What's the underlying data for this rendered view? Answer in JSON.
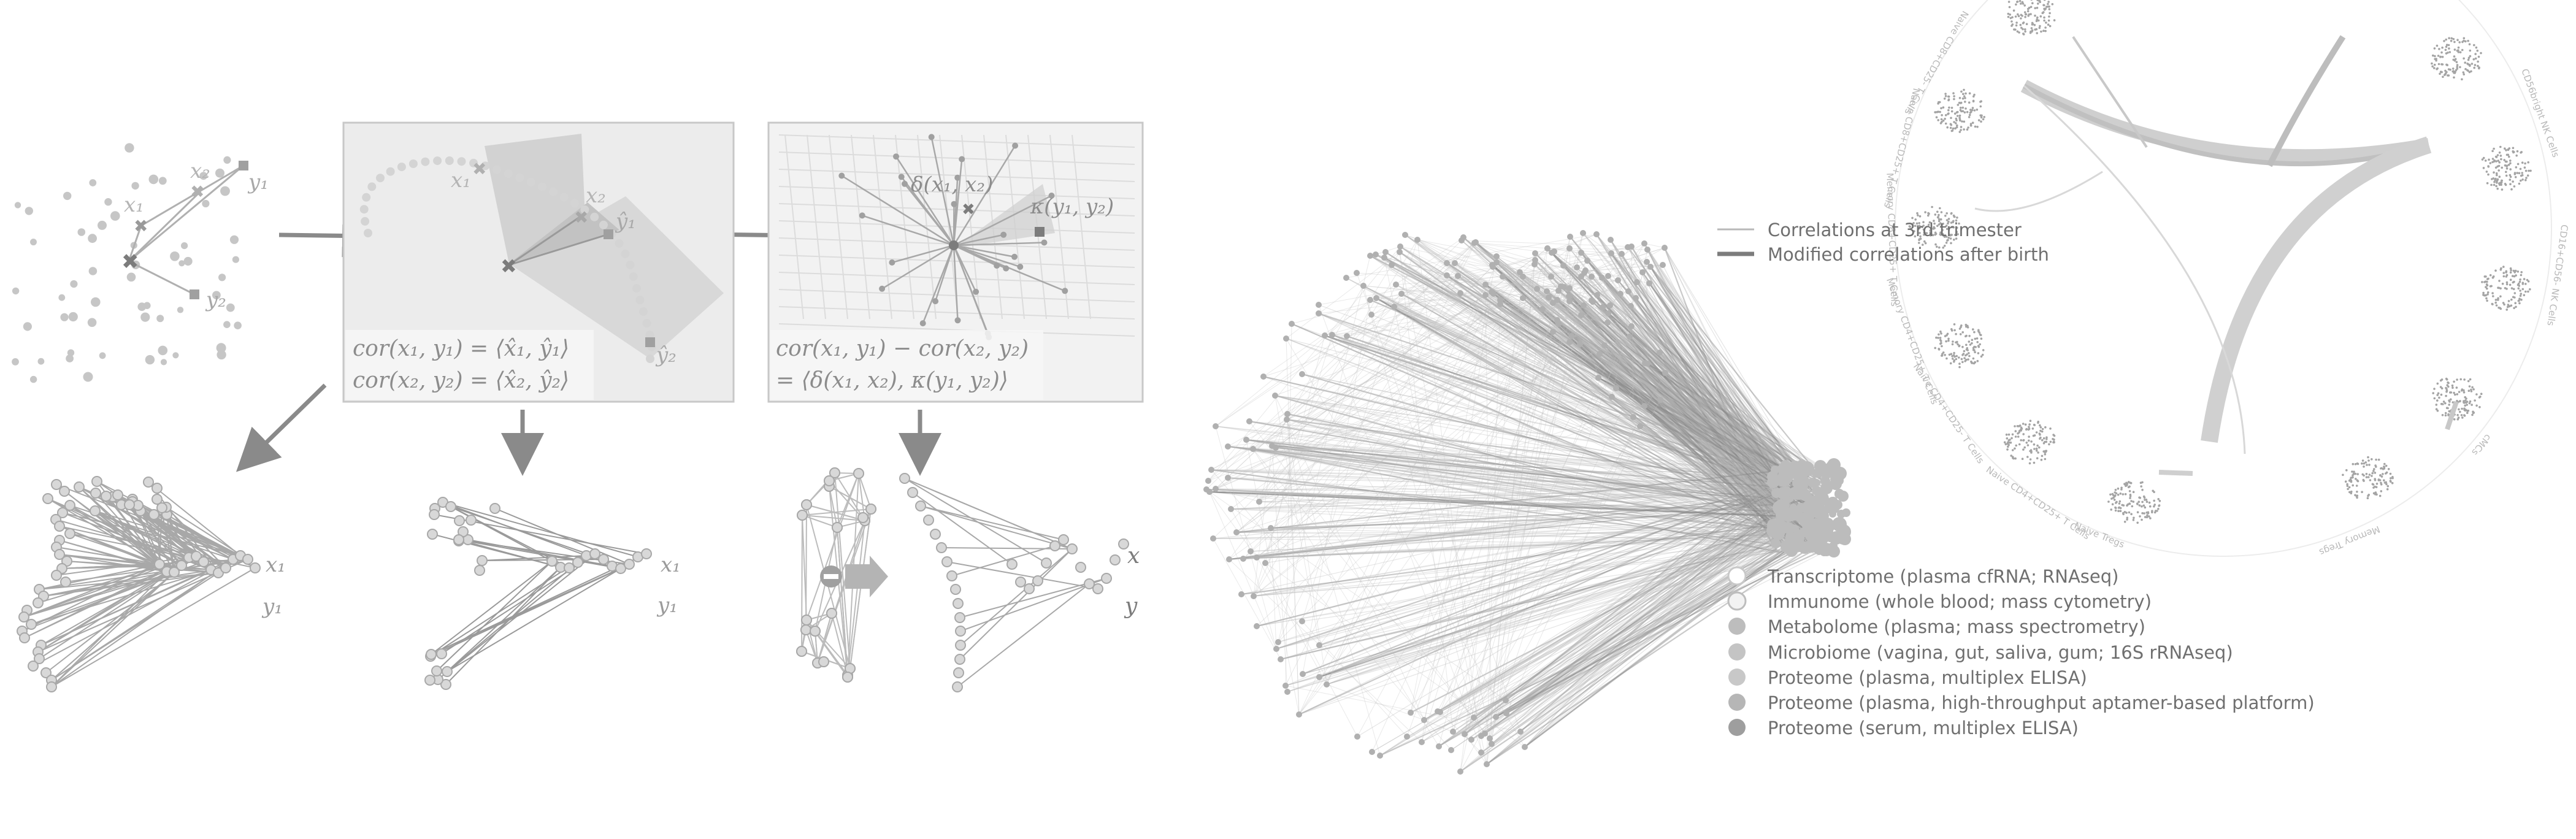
{
  "panel_a": {
    "x1": "x₁",
    "x2": "x₂",
    "y1": "y₁",
    "y2": "y₂"
  },
  "panel_b": {
    "x1": "x₁",
    "x2": "x₂",
    "y1hat": "ŷ₁",
    "y2hat": "ŷ₂",
    "formula1": "cor(x₁, y₁) = ⟨x̂₁, ŷ₁⟩",
    "formula2": "cor(x₂, y₂) = ⟨x̂₂, ŷ₂⟩"
  },
  "panel_c": {
    "delta": "δ(x₁, x₂)",
    "kappa": "κ(y₁, y₂)",
    "formula1": "cor(x₁, y₁) − cor(x₂, y₂)",
    "formula2": "= ⟨δ(x₁, x₂), κ(y₁, y₂)⟩"
  },
  "bottom": {
    "left_x1": "x₁",
    "left_y1": "y₁",
    "mid_x1": "x₁",
    "mid_y1": "y₁",
    "right_x": "x",
    "right_y": "y"
  },
  "correlation_legend": {
    "items": [
      "Correlations at 3rd trimester",
      "Modified correlations after birth"
    ]
  },
  "omics_legend": {
    "items": [
      "Transcriptome (plasma cfRNA; RNAseq)",
      "Immunome (whole blood; mass cytometry)",
      "Metabolome (plasma; mass spectrometry)",
      "Microbiome (vagina, gut, saliva, gum; 16S rRNAseq)",
      "Proteome (plasma, multiplex ELISA)",
      "Proteome (plasma, high-throughput aptamer-based platform)",
      "Proteome (serum, multiplex ELISA)"
    ]
  },
  "cell_ring_labels": [
    "B Cells",
    "Memory CD4+CD25- T Cells",
    "Naive CD8+CD25- T Cells",
    "Naive CD8+CD25+ T Cells",
    "Memory CD8+CD25+ T Cells",
    "Memory CD4+CD25+ T Cells",
    "Naive CD4+CD25- T Cells",
    "Naive CD4+CD25+ T Cells",
    "Naive Tregs",
    "Memory Tregs",
    "γδ T Cells",
    "CD56bright NK Cells",
    "CD16+CD56- NK Cells",
    "cMCs"
  ],
  "colors": {
    "light": "#c8c8c8",
    "mid": "#a8a8a8",
    "dark": "#7c7c7c",
    "panel_bg": "#ececec",
    "arrow": "#8a8a8a"
  }
}
